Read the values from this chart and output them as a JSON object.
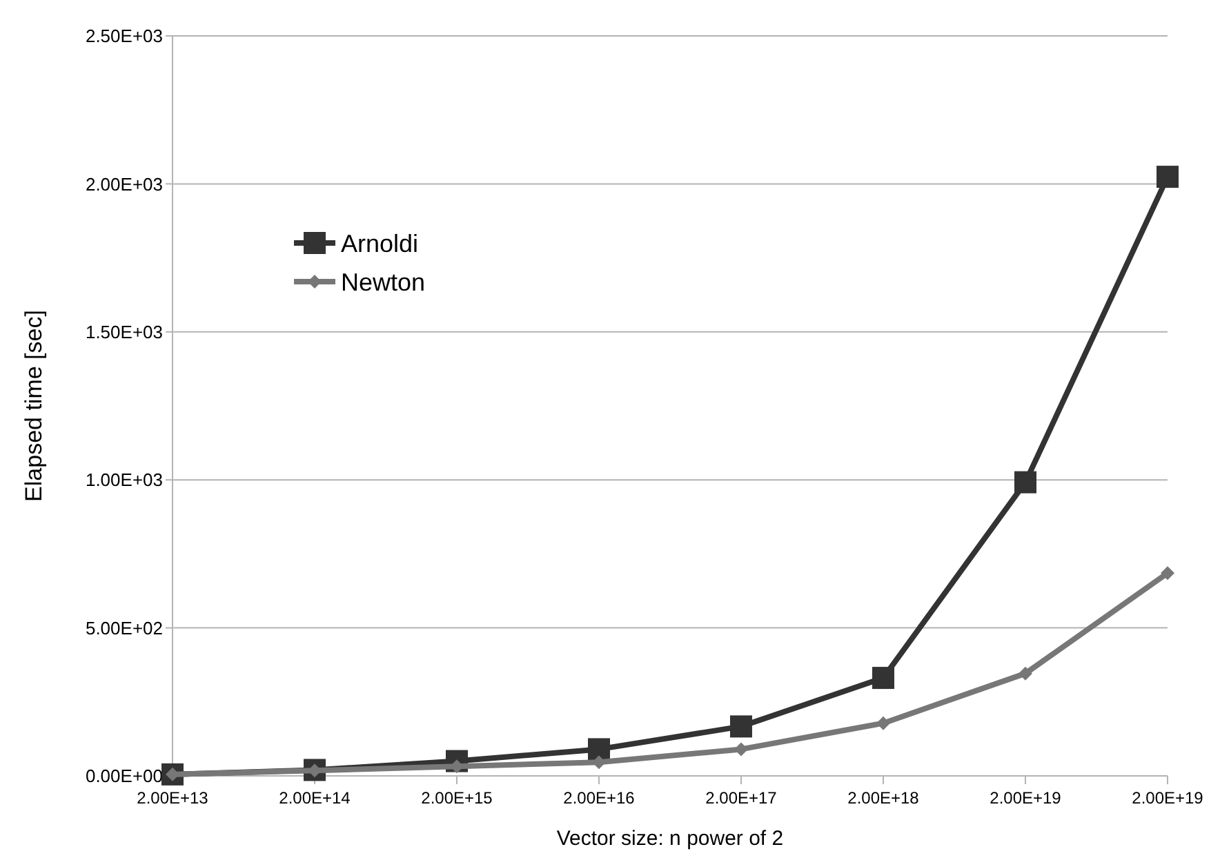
{
  "chart_data": {
    "type": "line",
    "xlabel": "Vector size: n power of 2",
    "ylabel": "Elapsed time [sec]",
    "categories": [
      "2.00E+13",
      "2.00E+14",
      "2.00E+15",
      "2.00E+16",
      "2.00E+17",
      "2.00E+18",
      "2.00E+19",
      "2.00E+19"
    ],
    "series": [
      {
        "name": "Arnoldi",
        "color": "#333333",
        "marker": "square",
        "values": [
          5,
          20,
          50,
          90,
          167,
          331,
          992,
          2024
        ]
      },
      {
        "name": "Newton",
        "color": "#777777",
        "marker": "diamond",
        "values": [
          5,
          18,
          32,
          46,
          90,
          178,
          346,
          685
        ]
      }
    ],
    "ylim": [
      0,
      2500
    ],
    "yticks": [
      {
        "value": 0,
        "label": "0.00E+00"
      },
      {
        "value": 500,
        "label": "5.00E+02"
      },
      {
        "value": 1000,
        "label": "1.00E+03"
      },
      {
        "value": 1500,
        "label": "1.50E+03"
      },
      {
        "value": 2000,
        "label": "2.00E+03"
      },
      {
        "value": 2500,
        "label": "2.50E+03"
      }
    ],
    "grid": "y",
    "legend": "top left",
    "line_style": "solid"
  }
}
